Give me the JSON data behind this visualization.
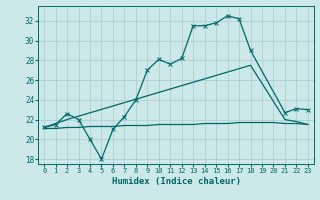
{
  "title": "",
  "xlabel": "Humidex (Indice chaleur)",
  "bg_color": "#cce8e8",
  "grid_color": "#b0d4d4",
  "line_color": "#006868",
  "xlim": [
    -0.5,
    23.5
  ],
  "ylim": [
    17.5,
    33.5
  ],
  "yticks": [
    18,
    20,
    22,
    24,
    26,
    28,
    30,
    32
  ],
  "xticks": [
    0,
    1,
    2,
    3,
    4,
    5,
    6,
    7,
    8,
    9,
    10,
    11,
    12,
    13,
    14,
    15,
    16,
    17,
    18,
    19,
    20,
    21,
    22,
    23
  ],
  "line1_x": [
    0,
    1,
    2,
    3,
    4,
    5,
    6,
    7,
    8,
    9,
    10,
    11,
    12,
    13,
    14,
    15,
    16,
    17,
    18,
    21,
    22,
    23
  ],
  "line1_y": [
    21.2,
    21.5,
    22.6,
    22.0,
    20.0,
    18.0,
    21.0,
    22.3,
    24.0,
    27.0,
    28.1,
    27.6,
    28.2,
    31.5,
    31.5,
    31.8,
    32.5,
    32.2,
    29.0,
    22.7,
    23.1,
    23.0
  ],
  "line2_x": [
    0,
    2,
    18,
    21,
    22,
    23
  ],
  "line2_y": [
    21.2,
    22.0,
    27.5,
    22.0,
    21.8,
    21.5
  ],
  "line3_x": [
    0,
    1,
    2,
    3,
    4,
    5,
    6,
    7,
    8,
    9,
    10,
    11,
    12,
    13,
    14,
    15,
    16,
    17,
    18,
    19,
    20,
    21,
    22,
    23
  ],
  "line3_y": [
    21.1,
    21.1,
    21.2,
    21.2,
    21.3,
    21.3,
    21.3,
    21.4,
    21.4,
    21.4,
    21.5,
    21.5,
    21.5,
    21.5,
    21.6,
    21.6,
    21.6,
    21.7,
    21.7,
    21.7,
    21.7,
    21.6,
    21.6,
    21.5
  ]
}
